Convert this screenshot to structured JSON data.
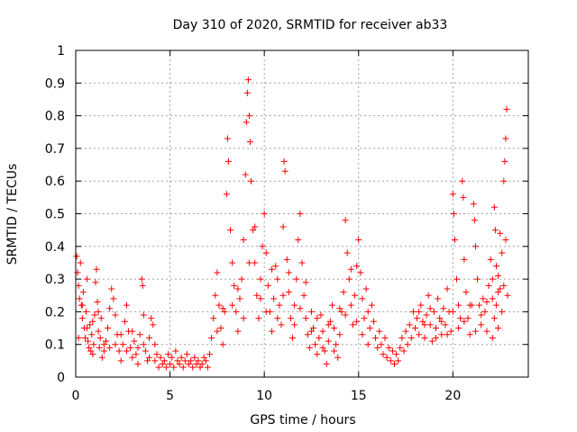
{
  "colors": {
    "series": "#ff0000",
    "axis": "#000000",
    "grid": "#a0a0a0"
  },
  "chart_data": {
    "type": "scatter",
    "title": "Day 310 of 2020, SRMTID for receiver ab33",
    "xlabel": "GPS time / hours",
    "ylabel": "SRMTID / TECUs",
    "xlim": [
      0,
      24
    ],
    "ylim": [
      0,
      1
    ],
    "xticks": [
      0,
      5,
      10,
      15,
      20
    ],
    "xtick_labels": [
      "0",
      "5",
      "10",
      "15",
      "20"
    ],
    "yticks": [
      0,
      0.1,
      0.2,
      0.3,
      0.4,
      0.5,
      0.6,
      0.7,
      0.8,
      0.9,
      1
    ],
    "ytick_labels": [
      "0",
      "0.1",
      "0.2",
      "0.3",
      "0.4",
      "0.5",
      "0.6",
      "0.7",
      "0.8",
      "0.9",
      "1"
    ],
    "grid": true,
    "marker": "+",
    "series": [
      {
        "name": "SRMTID",
        "points": [
          [
            0.05,
            0.37
          ],
          [
            0.1,
            0.32
          ],
          [
            0.15,
            0.28
          ],
          [
            0.2,
            0.24
          ],
          [
            0.25,
            0.35
          ],
          [
            0.3,
            0.22
          ],
          [
            0.35,
            0.18
          ],
          [
            0.4,
            0.26
          ],
          [
            0.45,
            0.15
          ],
          [
            0.5,
            0.12
          ],
          [
            0.55,
            0.2
          ],
          [
            0.6,
            0.3
          ],
          [
            0.65,
            0.11
          ],
          [
            0.7,
            0.09
          ],
          [
            0.75,
            0.16
          ],
          [
            0.8,
            0.08
          ],
          [
            0.85,
            0.13
          ],
          [
            0.9,
            0.07
          ],
          [
            0.95,
            0.1
          ],
          [
            1.0,
            0.19
          ],
          [
            1.05,
            0.29
          ],
          [
            1.1,
            0.33
          ],
          [
            1.15,
            0.23
          ],
          [
            1.2,
            0.14
          ],
          [
            1.25,
            0.09
          ],
          [
            1.3,
            0.12
          ],
          [
            1.35,
            0.18
          ],
          [
            1.4,
            0.06
          ],
          [
            1.5,
            0.08
          ],
          [
            1.6,
            0.11
          ],
          [
            1.7,
            0.15
          ],
          [
            1.8,
            0.21
          ],
          [
            1.9,
            0.27
          ],
          [
            2.0,
            0.24
          ],
          [
            2.1,
            0.19
          ],
          [
            2.2,
            0.13
          ],
          [
            2.3,
            0.08
          ],
          [
            2.4,
            0.05
          ],
          [
            2.5,
            0.1
          ],
          [
            2.6,
            0.17
          ],
          [
            2.7,
            0.22
          ],
          [
            2.8,
            0.14
          ],
          [
            2.9,
            0.09
          ],
          [
            3.0,
            0.06
          ],
          [
            3.1,
            0.11
          ],
          [
            3.2,
            0.07
          ],
          [
            3.3,
            0.04
          ],
          [
            3.4,
            0.13
          ],
          [
            3.5,
            0.3
          ],
          [
            3.55,
            0.28
          ],
          [
            3.6,
            0.19
          ],
          [
            3.7,
            0.08
          ],
          [
            3.8,
            0.05
          ],
          [
            3.9,
            0.12
          ],
          [
            4.0,
            0.18
          ],
          [
            4.1,
            0.16
          ],
          [
            4.2,
            0.1
          ],
          [
            4.3,
            0.07
          ],
          [
            4.4,
            0.03
          ],
          [
            4.5,
            0.06
          ],
          [
            4.6,
            0.04
          ],
          [
            4.7,
            0.05
          ],
          [
            4.8,
            0.03
          ],
          [
            4.9,
            0.07
          ],
          [
            5.0,
            0.04
          ],
          [
            5.1,
            0.06
          ],
          [
            5.2,
            0.03
          ],
          [
            5.3,
            0.08
          ],
          [
            5.4,
            0.05
          ],
          [
            5.5,
            0.04
          ],
          [
            5.6,
            0.06
          ],
          [
            5.7,
            0.03
          ],
          [
            5.8,
            0.05
          ],
          [
            5.9,
            0.07
          ],
          [
            6.0,
            0.04
          ],
          [
            6.1,
            0.05
          ],
          [
            6.2,
            0.03
          ],
          [
            6.3,
            0.06
          ],
          [
            6.4,
            0.04
          ],
          [
            6.5,
            0.05
          ],
          [
            6.6,
            0.03
          ],
          [
            6.7,
            0.04
          ],
          [
            6.8,
            0.06
          ],
          [
            6.9,
            0.05
          ],
          [
            7.0,
            0.03
          ],
          [
            7.1,
            0.07
          ],
          [
            7.2,
            0.12
          ],
          [
            7.3,
            0.18
          ],
          [
            7.4,
            0.25
          ],
          [
            7.5,
            0.32
          ],
          [
            7.6,
            0.22
          ],
          [
            7.7,
            0.15
          ],
          [
            7.8,
            0.1
          ],
          [
            7.9,
            0.2
          ],
          [
            8.0,
            0.56
          ],
          [
            8.05,
            0.73
          ],
          [
            8.1,
            0.66
          ],
          [
            8.2,
            0.45
          ],
          [
            8.3,
            0.35
          ],
          [
            8.4,
            0.28
          ],
          [
            8.5,
            0.2
          ],
          [
            8.6,
            0.14
          ],
          [
            8.7,
            0.24
          ],
          [
            8.8,
            0.3
          ],
          [
            8.9,
            0.42
          ],
          [
            9.0,
            0.62
          ],
          [
            9.05,
            0.78
          ],
          [
            9.1,
            0.87
          ],
          [
            9.15,
            0.91
          ],
          [
            9.2,
            0.8
          ],
          [
            9.25,
            0.72
          ],
          [
            9.3,
            0.6
          ],
          [
            9.4,
            0.45
          ],
          [
            9.5,
            0.35
          ],
          [
            9.6,
            0.25
          ],
          [
            9.7,
            0.18
          ],
          [
            9.8,
            0.3
          ],
          [
            9.9,
            0.4
          ],
          [
            10.0,
            0.5
          ],
          [
            10.1,
            0.38
          ],
          [
            10.2,
            0.28
          ],
          [
            10.3,
            0.2
          ],
          [
            10.4,
            0.14
          ],
          [
            10.5,
            0.24
          ],
          [
            10.6,
            0.34
          ],
          [
            10.7,
            0.3
          ],
          [
            10.8,
            0.22
          ],
          [
            10.9,
            0.16
          ],
          [
            11.0,
            0.46
          ],
          [
            11.05,
            0.66
          ],
          [
            11.1,
            0.63
          ],
          [
            11.2,
            0.36
          ],
          [
            11.3,
            0.26
          ],
          [
            11.4,
            0.18
          ],
          [
            11.5,
            0.12
          ],
          [
            11.6,
            0.22
          ],
          [
            11.7,
            0.3
          ],
          [
            11.8,
            0.42
          ],
          [
            11.9,
            0.5
          ],
          [
            12.0,
            0.35
          ],
          [
            12.1,
            0.25
          ],
          [
            12.2,
            0.18
          ],
          [
            12.3,
            0.13
          ],
          [
            12.4,
            0.09
          ],
          [
            12.5,
            0.2
          ],
          [
            12.6,
            0.15
          ],
          [
            12.7,
            0.1
          ],
          [
            12.8,
            0.07
          ],
          [
            12.9,
            0.12
          ],
          [
            13.0,
            0.19
          ],
          [
            13.1,
            0.14
          ],
          [
            13.2,
            0.08
          ],
          [
            13.3,
            0.04
          ],
          [
            13.4,
            0.11
          ],
          [
            13.5,
            0.17
          ],
          [
            13.6,
            0.22
          ],
          [
            13.7,
            0.15
          ],
          [
            13.8,
            0.1
          ],
          [
            13.9,
            0.06
          ],
          [
            14.0,
            0.13
          ],
          [
            14.1,
            0.2
          ],
          [
            14.2,
            0.26
          ],
          [
            14.3,
            0.48
          ],
          [
            14.4,
            0.38
          ],
          [
            14.5,
            0.3
          ],
          [
            14.6,
            0.22
          ],
          [
            14.7,
            0.16
          ],
          [
            14.8,
            0.25
          ],
          [
            14.9,
            0.34
          ],
          [
            15.0,
            0.42
          ],
          [
            15.1,
            0.32
          ],
          [
            15.2,
            0.24
          ],
          [
            15.3,
            0.18
          ],
          [
            15.4,
            0.27
          ],
          [
            15.5,
            0.2
          ],
          [
            15.6,
            0.15
          ],
          [
            15.7,
            0.22
          ],
          [
            15.8,
            0.17
          ],
          [
            15.9,
            0.12
          ],
          [
            16.0,
            0.09
          ],
          [
            16.1,
            0.14
          ],
          [
            16.2,
            0.1
          ],
          [
            16.3,
            0.07
          ],
          [
            16.4,
            0.12
          ],
          [
            16.5,
            0.06
          ],
          [
            16.6,
            0.09
          ],
          [
            16.7,
            0.05
          ],
          [
            16.8,
            0.08
          ],
          [
            16.9,
            0.04
          ],
          [
            17.0,
            0.07
          ],
          [
            17.1,
            0.05
          ],
          [
            17.2,
            0.09
          ],
          [
            17.3,
            0.12
          ],
          [
            17.4,
            0.08
          ],
          [
            17.5,
            0.14
          ],
          [
            17.6,
            0.1
          ],
          [
            17.7,
            0.16
          ],
          [
            17.8,
            0.12
          ],
          [
            17.9,
            0.2
          ],
          [
            18.0,
            0.15
          ],
          [
            18.1,
            0.18
          ],
          [
            18.2,
            0.13
          ],
          [
            18.3,
            0.22
          ],
          [
            18.4,
            0.17
          ],
          [
            18.5,
            0.12
          ],
          [
            18.6,
            0.19
          ],
          [
            18.7,
            0.25
          ],
          [
            18.8,
            0.16
          ],
          [
            18.9,
            0.11
          ],
          [
            19.0,
            0.2
          ],
          [
            19.1,
            0.15
          ],
          [
            19.2,
            0.24
          ],
          [
            19.3,
            0.18
          ],
          [
            19.4,
            0.13
          ],
          [
            19.5,
            0.21
          ],
          [
            19.6,
            0.16
          ],
          [
            19.7,
            0.27
          ],
          [
            19.8,
            0.2
          ],
          [
            19.9,
            0.14
          ],
          [
            20.0,
            0.56
          ],
          [
            20.05,
            0.5
          ],
          [
            20.1,
            0.42
          ],
          [
            20.2,
            0.3
          ],
          [
            20.3,
            0.22
          ],
          [
            20.4,
            0.18
          ],
          [
            20.5,
            0.6
          ],
          [
            20.55,
            0.55
          ],
          [
            20.6,
            0.36
          ],
          [
            20.7,
            0.26
          ],
          [
            20.8,
            0.18
          ],
          [
            20.9,
            0.13
          ],
          [
            21.0,
            0.22
          ],
          [
            21.1,
            0.53
          ],
          [
            21.15,
            0.48
          ],
          [
            21.2,
            0.4
          ],
          [
            21.3,
            0.3
          ],
          [
            21.4,
            0.22
          ],
          [
            21.5,
            0.16
          ],
          [
            21.6,
            0.24
          ],
          [
            21.7,
            0.2
          ],
          [
            21.8,
            0.14
          ],
          [
            21.9,
            0.28
          ],
          [
            22.0,
            0.36
          ],
          [
            22.1,
            0.3
          ],
          [
            22.2,
            0.52
          ],
          [
            22.25,
            0.45
          ],
          [
            22.3,
            0.34
          ],
          [
            22.4,
            0.26
          ],
          [
            22.5,
            0.44
          ],
          [
            22.6,
            0.38
          ],
          [
            22.7,
            0.6
          ],
          [
            22.75,
            0.66
          ],
          [
            22.8,
            0.73
          ],
          [
            22.85,
            0.82
          ],
          [
            22.6,
            0.2
          ],
          [
            22.5,
            0.27
          ],
          [
            22.4,
            0.15
          ],
          [
            22.3,
            0.22
          ],
          [
            22.2,
            0.18
          ],
          [
            22.1,
            0.12
          ],
          [
            0.15,
            0.12
          ],
          [
            0.35,
            0.22
          ],
          [
            0.6,
            0.15
          ],
          [
            0.9,
            0.17
          ],
          [
            1.2,
            0.2
          ],
          [
            1.5,
            0.1
          ],
          [
            1.8,
            0.09
          ],
          [
            2.1,
            0.1
          ],
          [
            2.4,
            0.13
          ],
          [
            2.7,
            0.08
          ],
          [
            3.0,
            0.14
          ],
          [
            3.3,
            0.09
          ],
          [
            3.6,
            0.1
          ],
          [
            3.9,
            0.06
          ],
          [
            4.2,
            0.05
          ],
          [
            8.3,
            0.22
          ],
          [
            8.6,
            0.27
          ],
          [
            8.9,
            0.18
          ],
          [
            9.2,
            0.35
          ],
          [
            9.5,
            0.46
          ],
          [
            9.8,
            0.24
          ],
          [
            10.1,
            0.2
          ],
          [
            10.4,
            0.33
          ],
          [
            10.7,
            0.18
          ],
          [
            11.0,
            0.25
          ],
          [
            11.3,
            0.32
          ],
          [
            11.6,
            0.16
          ],
          [
            11.9,
            0.21
          ],
          [
            12.2,
            0.29
          ],
          [
            12.5,
            0.14
          ],
          [
            12.8,
            0.18
          ],
          [
            13.1,
            0.09
          ],
          [
            13.4,
            0.16
          ],
          [
            13.7,
            0.08
          ],
          [
            14.0,
            0.21
          ],
          [
            14.3,
            0.19
          ],
          [
            14.6,
            0.33
          ],
          [
            14.9,
            0.17
          ],
          [
            15.2,
            0.13
          ],
          [
            15.5,
            0.1
          ],
          [
            18.2,
            0.2
          ],
          [
            18.5,
            0.16
          ],
          [
            18.8,
            0.21
          ],
          [
            19.1,
            0.12
          ],
          [
            19.4,
            0.17
          ],
          [
            19.7,
            0.13
          ],
          [
            20.0,
            0.2
          ],
          [
            20.3,
            0.15
          ],
          [
            20.6,
            0.17
          ],
          [
            20.9,
            0.22
          ],
          [
            21.2,
            0.14
          ],
          [
            21.5,
            0.19
          ],
          [
            21.8,
            0.23
          ],
          [
            22.1,
            0.24
          ],
          [
            22.4,
            0.31
          ],
          [
            22.7,
            0.28
          ],
          [
            22.8,
            0.42
          ],
          [
            22.9,
            0.25
          ],
          [
            7.5,
            0.14
          ],
          [
            7.8,
            0.21
          ]
        ]
      }
    ]
  }
}
